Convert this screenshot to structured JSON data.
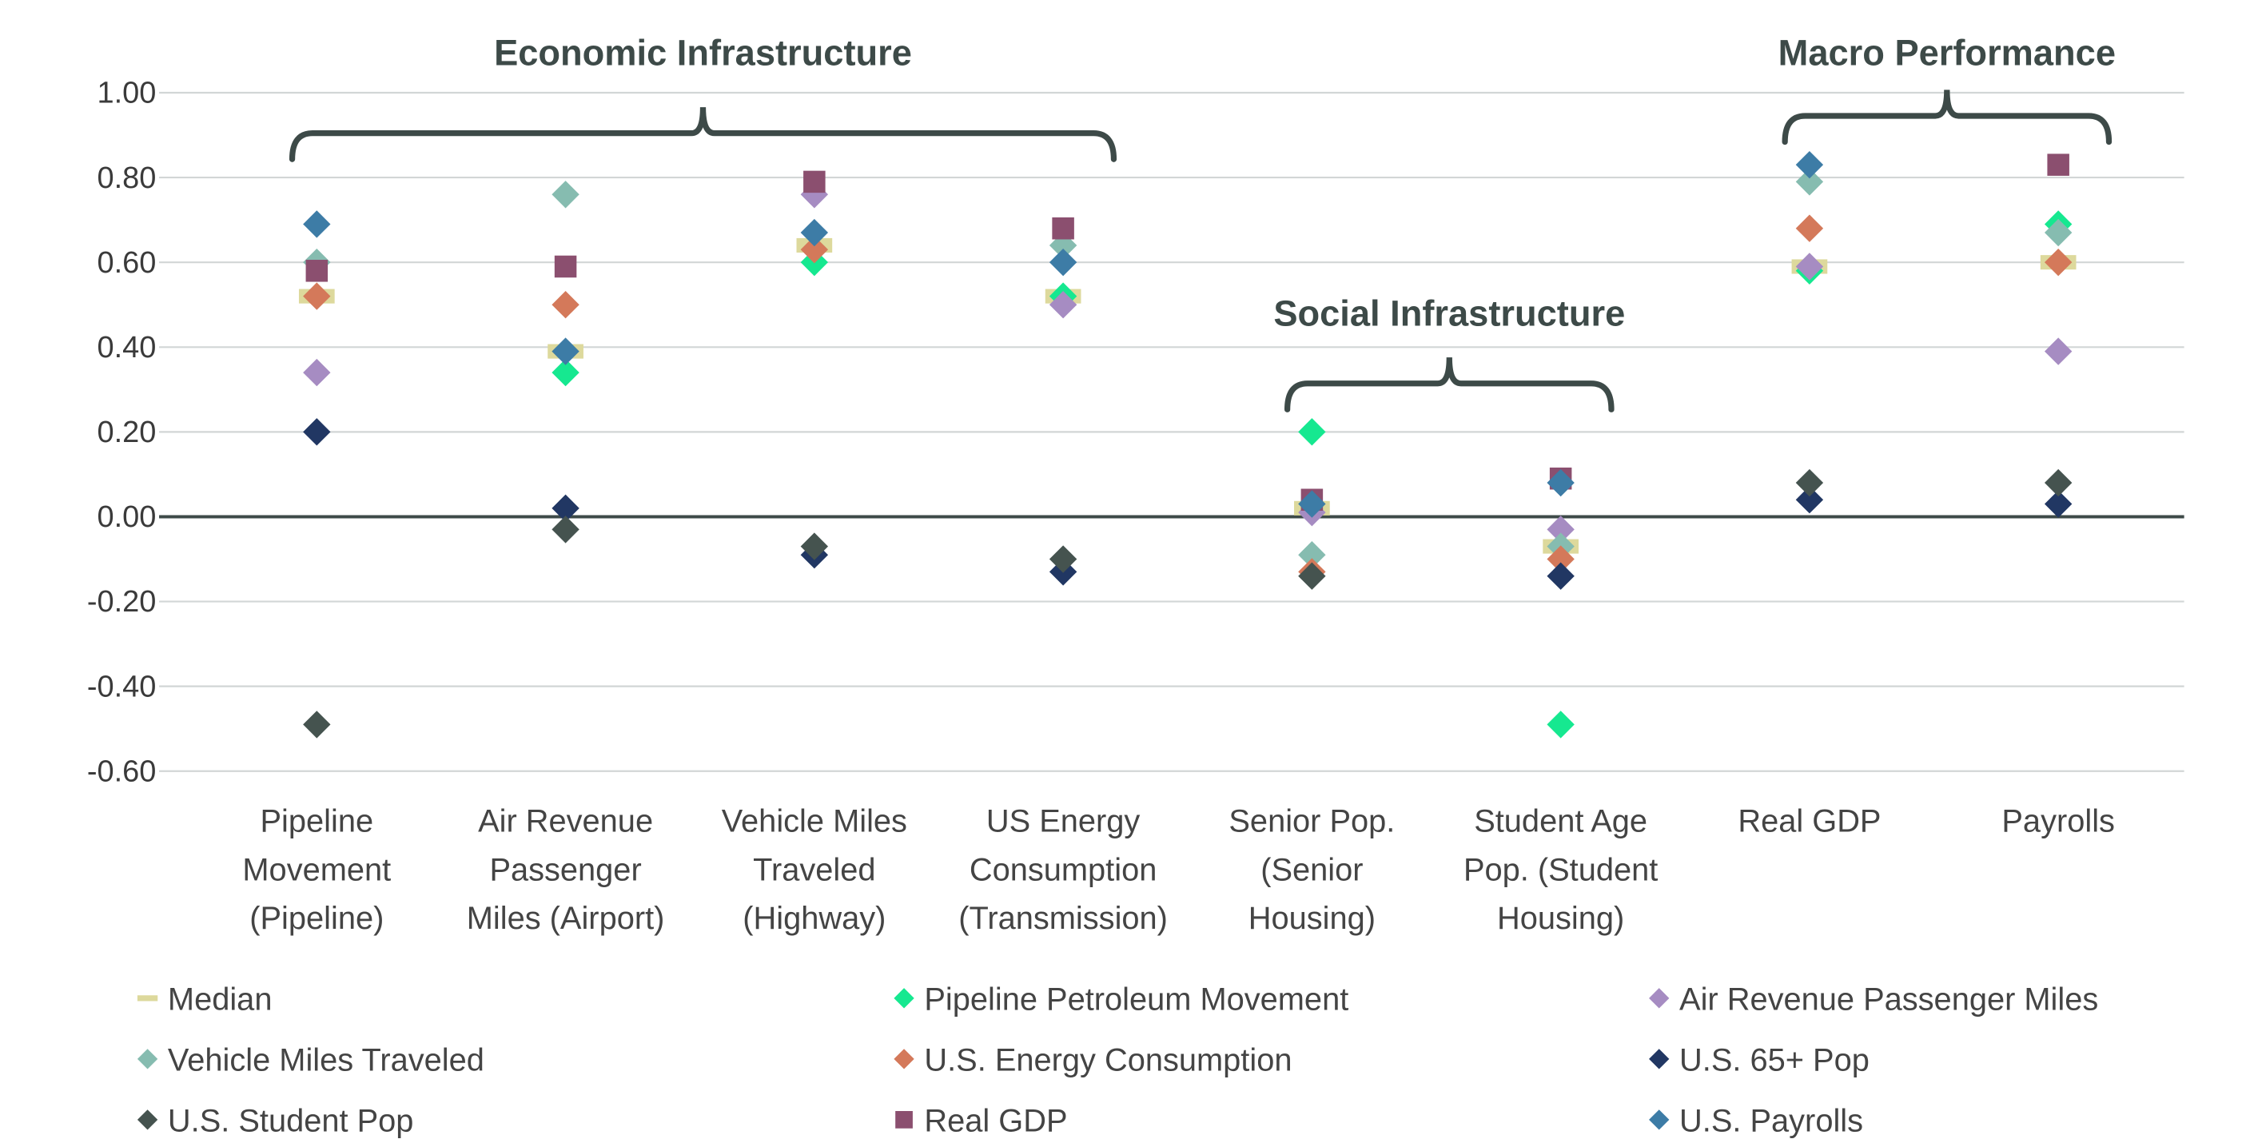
{
  "chart_data": {
    "type": "scatter",
    "title": "",
    "xlabel": "",
    "ylabel": "",
    "ylim": [
      -0.6,
      1.0
    ],
    "yticks": [
      "1.00",
      "0.80",
      "0.60",
      "0.40",
      "0.20",
      "0.00",
      "-0.20",
      "-0.40",
      "-0.60"
    ],
    "ytick_values": [
      1.0,
      0.8,
      0.6,
      0.4,
      0.2,
      0.0,
      -0.2,
      -0.4,
      -0.6
    ],
    "grid": true,
    "legend_position": "bottom",
    "categories": [
      [
        "Pipeline",
        "Movement",
        "(Pipeline)"
      ],
      [
        "Air Revenue",
        "Passenger",
        "Miles (Airport)"
      ],
      [
        "Vehicle Miles",
        "Traveled",
        "(Highway)"
      ],
      [
        "US Energy",
        "Consumption",
        "(Transmission)"
      ],
      [
        "Senior Pop.",
        "(Senior",
        "Housing)"
      ],
      [
        "Student Age",
        "Pop. (Student",
        "Housing)"
      ],
      [
        "Real GDP"
      ],
      [
        "Payrolls"
      ]
    ],
    "groups": [
      {
        "label": "Economic Infrastructure",
        "from": 0,
        "to": 3
      },
      {
        "label": "Social Infrastructure",
        "from": 4,
        "to": 5
      },
      {
        "label": "Macro Performance",
        "from": 6,
        "to": 7
      }
    ],
    "series": [
      {
        "name": "Median",
        "marker": "dash",
        "color": "#ddd99c",
        "values": [
          0.52,
          0.39,
          0.64,
          0.52,
          0.02,
          -0.07,
          0.59,
          0.6
        ]
      },
      {
        "name": "Pipeline Petroleum Movement",
        "marker": "diamond",
        "color": "#16e890",
        "values": [
          null,
          0.34,
          0.6,
          0.52,
          0.2,
          -0.49,
          0.58,
          0.69
        ]
      },
      {
        "name": "Air Revenue Passenger Miles",
        "marker": "diamond",
        "color": "#a68cc2",
        "values": [
          0.34,
          null,
          0.76,
          0.5,
          0.01,
          -0.03,
          0.59,
          0.39
        ]
      },
      {
        "name": "Vehicle Miles Traveled",
        "marker": "diamond",
        "color": "#86bcb0",
        "values": [
          0.6,
          0.76,
          null,
          0.64,
          -0.09,
          -0.07,
          0.79,
          0.67
        ]
      },
      {
        "name": "U.S. Energy Consumption",
        "marker": "diamond",
        "color": "#d4795a",
        "values": [
          0.52,
          0.5,
          0.63,
          null,
          -0.13,
          -0.1,
          0.68,
          0.6
        ]
      },
      {
        "name": "U.S. 65+ Pop",
        "marker": "diamond",
        "color": "#213763",
        "values": [
          0.2,
          0.02,
          -0.09,
          -0.13,
          null,
          -0.14,
          0.04,
          0.03
        ]
      },
      {
        "name": "U.S. Student Pop",
        "marker": "diamond",
        "color": "#45534f",
        "values": [
          -0.49,
          -0.03,
          -0.07,
          -0.1,
          -0.14,
          null,
          0.08,
          0.08
        ]
      },
      {
        "name": "Real GDP",
        "marker": "square",
        "color": "#8b4f6f",
        "values": [
          0.58,
          0.59,
          0.79,
          0.68,
          0.04,
          0.09,
          null,
          0.83
        ]
      },
      {
        "name": "U.S. Payrolls",
        "marker": "diamond",
        "color": "#3d7ca6",
        "values": [
          0.69,
          0.39,
          0.67,
          0.6,
          0.03,
          0.08,
          0.83,
          null
        ]
      }
    ]
  }
}
